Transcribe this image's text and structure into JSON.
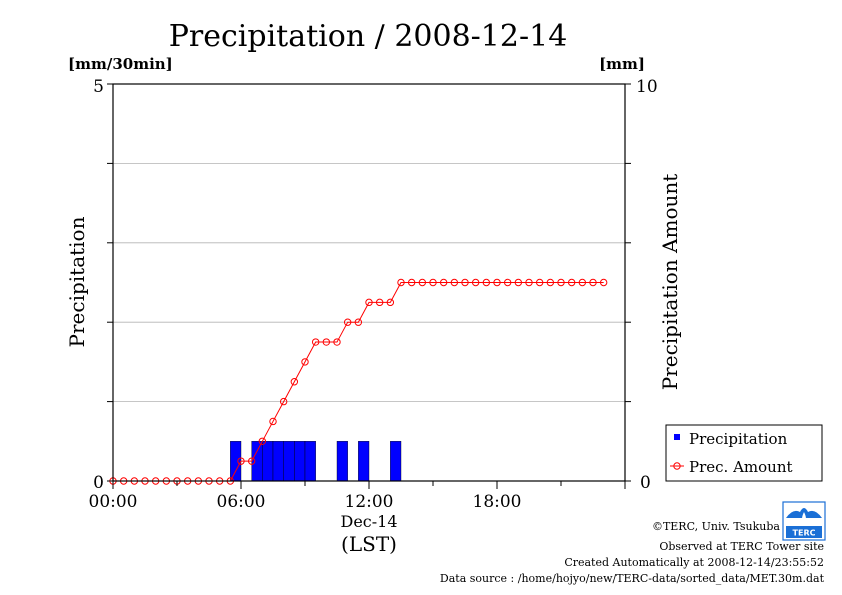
{
  "chart_data": {
    "type": "bar+line",
    "title": "Precipitation / 2008-12-14",
    "y_left": {
      "label": "Precipitation",
      "unit": "[mm/30min]",
      "range": [
        0,
        5
      ],
      "ticks": [
        "0",
        "5"
      ]
    },
    "y_right": {
      "label": "Precipitation Amount",
      "unit": "[mm]",
      "range": [
        0,
        10
      ],
      "ticks": [
        "0",
        "10"
      ]
    },
    "x": {
      "range_hours": [
        0,
        24
      ],
      "tick_labels": [
        "00:00",
        "06:00",
        "12:00",
        "18:00"
      ],
      "date_label": "Dec-14",
      "label": "(LST)"
    },
    "grid": "horizontal",
    "legend_position": "bottom-right",
    "series": [
      {
        "name": "Precipitation",
        "kind": "bar",
        "color": "#0000ff",
        "interval_hours": 0.5,
        "start_hours": [
          5.5,
          6.5,
          7.0,
          7.5,
          8.0,
          8.5,
          9.0,
          10.5,
          11.5,
          13.0
        ],
        "values": [
          0.5,
          0.5,
          0.5,
          0.5,
          0.5,
          0.5,
          0.5,
          0.5,
          0.5,
          0.5
        ]
      },
      {
        "name": "Prec. Amount",
        "kind": "line",
        "color": "#ff0000",
        "x_hours": [
          0,
          0.5,
          1,
          1.5,
          2,
          2.5,
          3,
          3.5,
          4,
          4.5,
          5,
          5.5,
          6,
          6.5,
          7,
          7.5,
          8,
          8.5,
          9,
          9.5,
          10,
          10.5,
          11,
          11.5,
          12,
          12.5,
          13,
          13.5,
          14,
          14.5,
          15,
          15.5,
          16,
          16.5,
          17,
          17.5,
          18,
          18.5,
          19,
          19.5,
          20,
          20.5,
          21,
          21.5,
          22,
          22.5,
          23
        ],
        "values": [
          0,
          0,
          0,
          0,
          0,
          0,
          0,
          0,
          0,
          0,
          0,
          0,
          0.5,
          0.5,
          1,
          1.5,
          2,
          2.5,
          3,
          3.5,
          3.5,
          3.5,
          4,
          4,
          4.5,
          4.5,
          4.5,
          5,
          5,
          5,
          5,
          5,
          5,
          5,
          5,
          5,
          5,
          5,
          5,
          5,
          5,
          5,
          5,
          5,
          5,
          5,
          5
        ]
      }
    ]
  },
  "footer": {
    "copyright": "©TERC, Univ. Tsukuba",
    "observed": "Observed at TERC Tower site",
    "created": "Created Automatically at 2008-12-14/23:55:52",
    "source": "Data source : /home/hojyo/new/TERC-data/sorted_data/MET.30m.dat"
  },
  "logo": {
    "text": "TERC"
  }
}
